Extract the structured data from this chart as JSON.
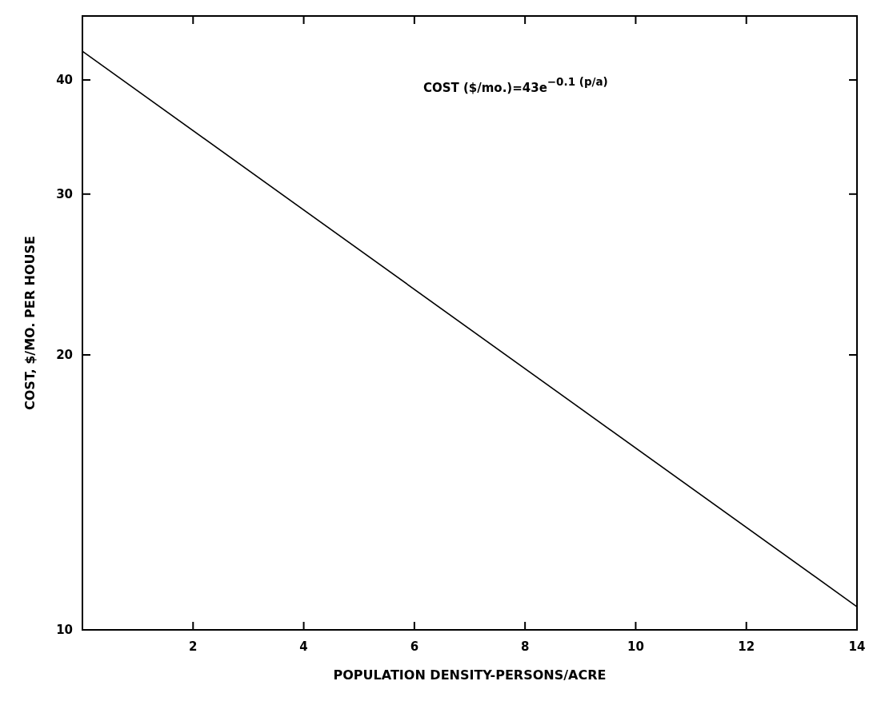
{
  "chart_data": {
    "type": "line",
    "xlabel": "POPULATION DENSITY-PERSONS/ACRE",
    "ylabel": "COST, $/MO. PER HOUSE",
    "x": [
      0,
      14
    ],
    "series": [
      {
        "color": "#000000",
        "values": [
          43,
          10.6
        ]
      }
    ],
    "xlim": [
      0,
      14
    ],
    "xticks": [
      2,
      4,
      6,
      8,
      10,
      12,
      14
    ],
    "ylim": [
      10,
      47
    ],
    "yticks": [
      10,
      20,
      30,
      40
    ],
    "log": true,
    "grid": false,
    "marker": "none",
    "line_style": "solid",
    "annotations": [
      "COST ($/mo.)=43e$^{−0.1 (p/a)}$"
    ]
  }
}
